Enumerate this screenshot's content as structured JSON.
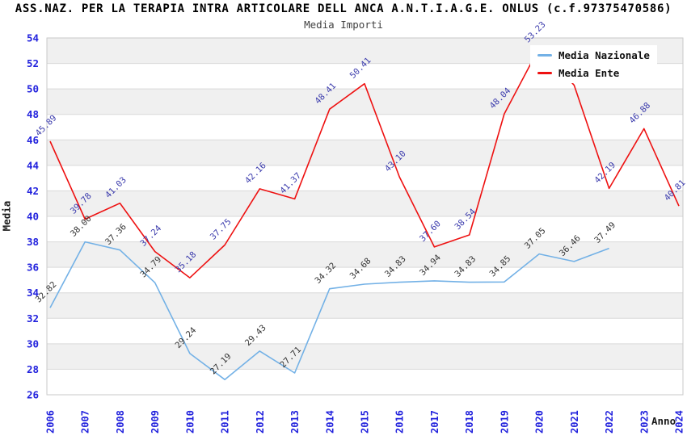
{
  "header": {
    "title": "ASS.NAZ. PER LA TERAPIA INTRA ARTICOLARE DELL ANCA A.N.T.I.A.G.E. ONLUS (c.f.97375470586)",
    "subtitle": "Media Importi"
  },
  "colors": {
    "band": "#f0f0f0",
    "grid": "#d9d9d9",
    "border": "#c9c9c9",
    "axis_text": "#2222dd",
    "title_text": "#000000",
    "subtitle_text": "#404040"
  },
  "chart_data": {
    "type": "line",
    "title": "Media Importi",
    "xlabel": "Anno",
    "ylabel": "Media",
    "ylim": [
      26,
      54
    ],
    "ytick_step": 2,
    "grid": true,
    "legend_position": "top-right",
    "categories": [
      "2006",
      "2007",
      "2008",
      "2009",
      "2010",
      "2011",
      "2012",
      "2013",
      "2014",
      "2015",
      "2016",
      "2017",
      "2018",
      "2019",
      "2020",
      "2021",
      "2022",
      "2023",
      "2024"
    ],
    "series": [
      {
        "name": "Media Nazionale",
        "color": "#73b1e6",
        "label_color": "#333333",
        "values": [
          32.82,
          38.0,
          37.36,
          34.79,
          29.24,
          27.19,
          29.43,
          27.71,
          34.32,
          34.68,
          34.83,
          34.94,
          34.83,
          34.85,
          37.05,
          36.46,
          37.49,
          null,
          null
        ]
      },
      {
        "name": "Media Ente",
        "color": "#ee1111",
        "label_color": "#3a3aac",
        "values": [
          45.89,
          39.78,
          41.03,
          37.24,
          35.18,
          37.75,
          42.16,
          41.37,
          48.41,
          50.41,
          43.1,
          37.6,
          38.54,
          48.04,
          53.23,
          50.3,
          42.19,
          46.88,
          40.81
        ]
      }
    ]
  }
}
